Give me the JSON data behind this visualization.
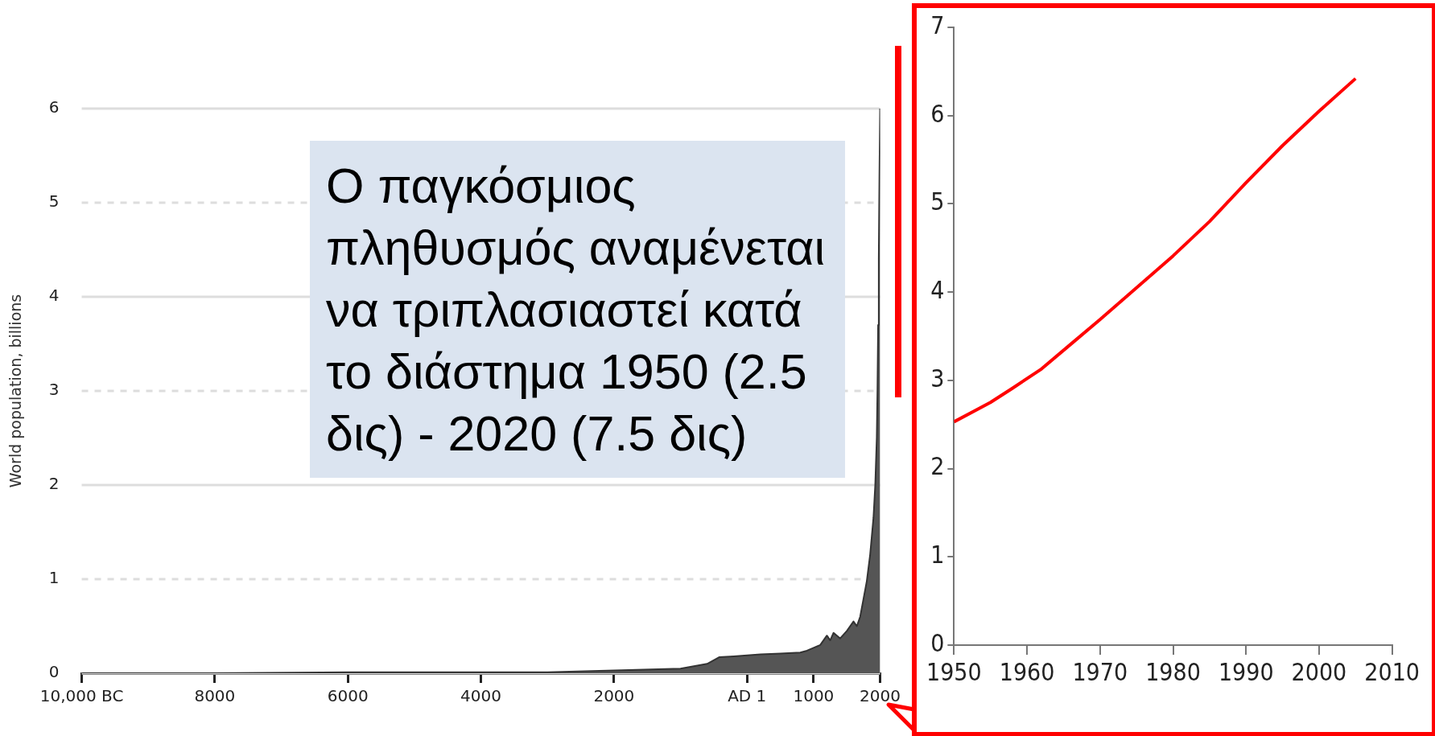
{
  "chart_data": [
    {
      "type": "area",
      "ylabel": "World population, billions",
      "color": "#555555",
      "x": [
        -10000,
        -8000,
        -6000,
        -4000,
        -3000,
        -2000,
        -1000,
        -600,
        -420,
        -200,
        0,
        200,
        500,
        800,
        900,
        1000,
        1100,
        1200,
        1250,
        1300,
        1400,
        1500,
        1600,
        1650,
        1700,
        1750,
        1800,
        1850,
        1900,
        1927,
        1950,
        1960,
        1970,
        1980,
        1990,
        2000
      ],
      "values": [
        0,
        0,
        0.01,
        0.01,
        0.01,
        0.03,
        0.05,
        0.1,
        0.17,
        0.18,
        0.19,
        0.2,
        0.21,
        0.22,
        0.24,
        0.27,
        0.3,
        0.4,
        0.35,
        0.43,
        0.37,
        0.45,
        0.55,
        0.5,
        0.6,
        0.79,
        0.98,
        1.26,
        1.65,
        2,
        2.5,
        3,
        3.7,
        4.4,
        5.3,
        6
      ],
      "xlim": [
        -10000,
        2000
      ],
      "xticks": [
        {
          "value": -10000,
          "label": "10,000 BC"
        },
        {
          "value": -8000,
          "label": "8000"
        },
        {
          "value": -6000,
          "label": "6000"
        },
        {
          "value": -4000,
          "label": "4000"
        },
        {
          "value": -2000,
          "label": "2000"
        },
        {
          "value": 0,
          "label": "AD 1"
        },
        1000,
        2000
      ],
      "ylim": [
        0,
        6
      ],
      "yticks": [
        0,
        1,
        2,
        3,
        4,
        5,
        6
      ],
      "grid": "y",
      "annotations": [
        "Ο παγκόσμιος πληθυσμός αναμένεται να τριπλασιαστεί κατά το διάστημα 1950 (2.5 δις) - 2020 (7.5 δις)"
      ]
    },
    {
      "type": "line",
      "color": "#ff0000",
      "x": [
        1950,
        1955,
        1958,
        1962,
        1966,
        1970,
        1975,
        1980,
        1985,
        1990,
        1995,
        2000,
        2005
      ],
      "values": [
        2.53,
        2.75,
        2.91,
        3.13,
        3.41,
        3.69,
        4.05,
        4.41,
        4.8,
        5.24,
        5.66,
        6.05,
        6.42
      ],
      "xlim": [
        1950,
        2010
      ],
      "xticks": [
        1950,
        1960,
        1970,
        1980,
        1990,
        2000,
        2010
      ],
      "ylim": [
        0,
        7
      ],
      "yticks": [
        0,
        1,
        2,
        3,
        4,
        5,
        6,
        7
      ]
    }
  ]
}
